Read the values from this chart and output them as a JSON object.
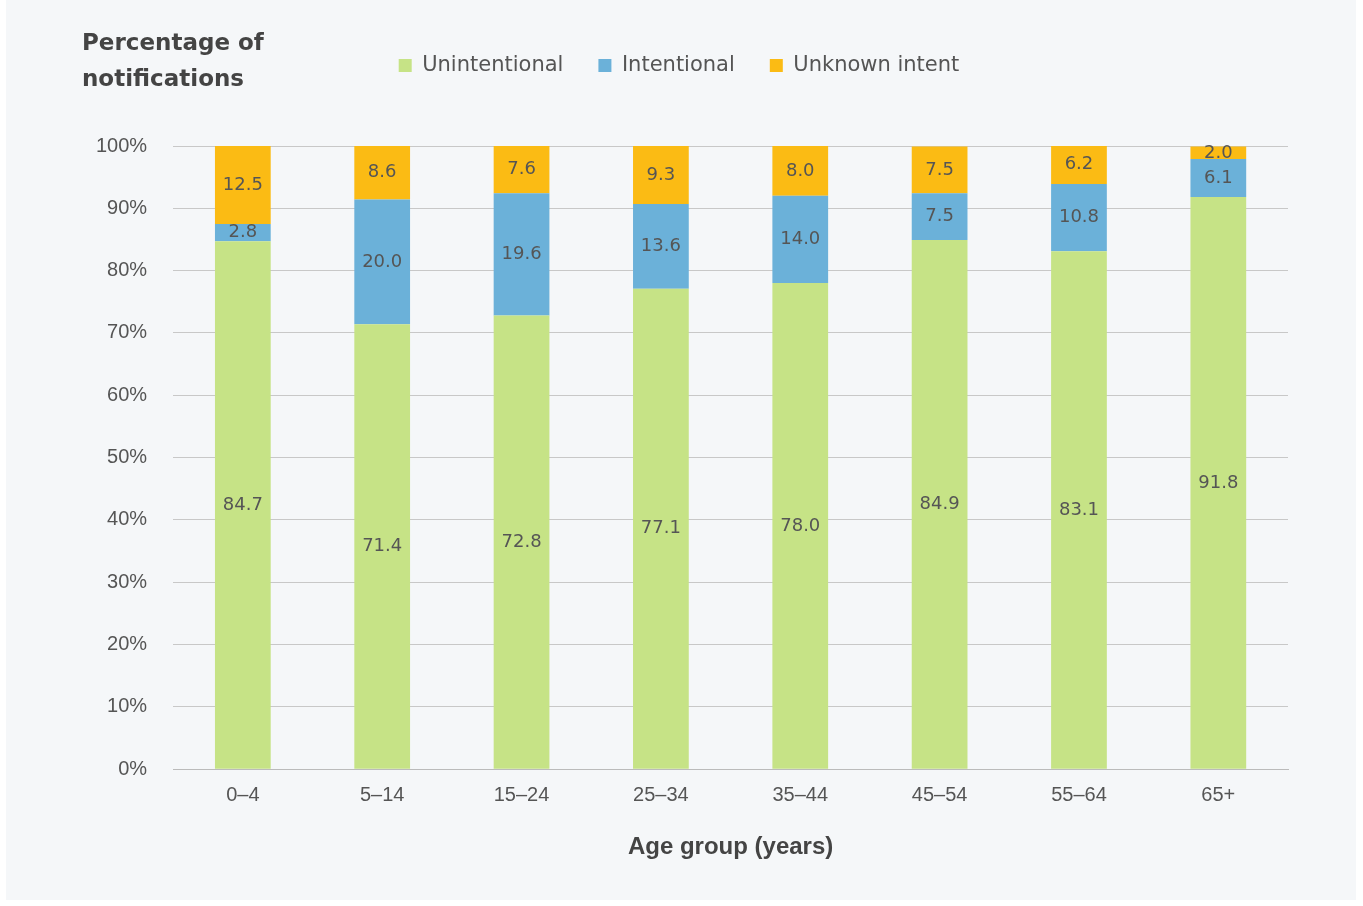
{
  "chart_data": {
    "type": "bar",
    "stacked": true,
    "ylabel": "Percentage of notifications",
    "xlabel": "Age group (years)",
    "categories": [
      "0–4",
      "5–14",
      "15–24",
      "25–34",
      "35–44",
      "45–54",
      "55–64",
      "65+"
    ],
    "series": [
      {
        "name": "Unintentional",
        "color": "#c6e386",
        "values": [
          84.7,
          71.4,
          72.8,
          77.1,
          78.0,
          84.9,
          83.1,
          91.8
        ],
        "value_labels": [
          "84.7",
          "71.4",
          "72.8",
          "77.1",
          "78.0",
          "84.9",
          "83.1",
          "91.8"
        ]
      },
      {
        "name": "Intentional",
        "color": "#6bb1d9",
        "values": [
          2.8,
          20.0,
          19.6,
          13.6,
          14.0,
          7.5,
          10.8,
          6.1
        ],
        "value_labels": [
          "2.8",
          "20.0",
          "19.6",
          "13.6",
          "14.0",
          "7.5",
          "10.8",
          "6.1"
        ]
      },
      {
        "name": "Unknown intent",
        "color": "#fbbb14",
        "values": [
          12.5,
          8.6,
          7.6,
          9.3,
          8.0,
          7.5,
          6.2,
          2.0
        ],
        "value_labels": [
          "12.5",
          "8.6",
          "7.6",
          "9.3",
          "8.0",
          "7.5",
          "6.2",
          "2.0"
        ]
      }
    ],
    "ylim": [
      0,
      100
    ],
    "yticks": [
      {
        "value": 0,
        "label": "0%"
      },
      {
        "value": 10,
        "label": "10%"
      },
      {
        "value": 20,
        "label": "20%"
      },
      {
        "value": 30,
        "label": "30%"
      },
      {
        "value": 40,
        "label": "40%"
      },
      {
        "value": 50,
        "label": "50%"
      },
      {
        "value": 60,
        "label": "60%"
      },
      {
        "value": 70,
        "label": "70%"
      },
      {
        "value": 80,
        "label": "80%"
      },
      {
        "value": 90,
        "label": "90%"
      },
      {
        "value": 100,
        "label": "100%"
      }
    ],
    "grid": "y",
    "legend": "top"
  }
}
